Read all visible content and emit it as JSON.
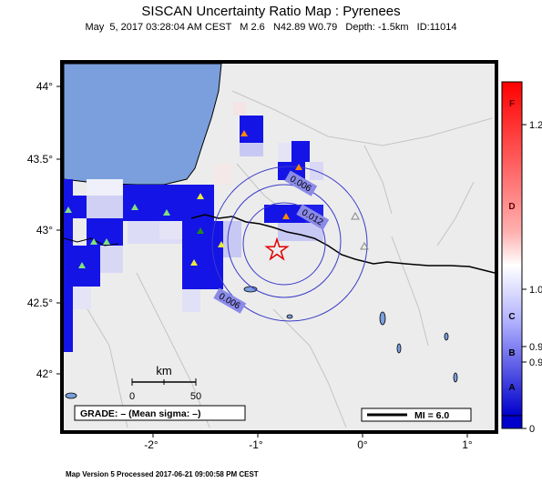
{
  "header": {
    "title": "SISCAN Uncertainty Ratio Map : Pyrenees",
    "subtitle": "May  5, 2017 03:28:04 AM CEST   M 2.6   N42.89 W0.79   Depth: -1.5km   ID:11014"
  },
  "map": {
    "lat_labels": [
      "44°",
      "43.5°",
      "43°",
      "42.5°",
      "42°"
    ],
    "lon_labels": [
      "-2°",
      "-1°",
      "0°",
      "1°"
    ],
    "contour_labels": [
      "0.006",
      "0.012",
      "0.006"
    ],
    "scale_bar": {
      "unit": "km",
      "ticks": [
        "0",
        "50"
      ]
    },
    "grade_box": "GRADE: – (Mean sigma: –)",
    "mi_box": "MI = 6.0",
    "colors": {
      "sea": "#7a9fdc",
      "land": "#ececec",
      "cell_high": "#1010e6",
      "epicenter": "#e00000"
    }
  },
  "colorbar": {
    "grade_letters": [
      "F",
      "D",
      "C",
      "B",
      "A"
    ],
    "values": [
      "1.2",
      "1.0",
      "0.9",
      "0.9",
      "0"
    ],
    "colors": {
      "top": "#ff0000",
      "middle": "#ffffff",
      "bottom": "#0000cc"
    }
  },
  "footer": {
    "text": "Map Version 5 Processed 2017-06-21 09:00:58 PM CEST"
  }
}
